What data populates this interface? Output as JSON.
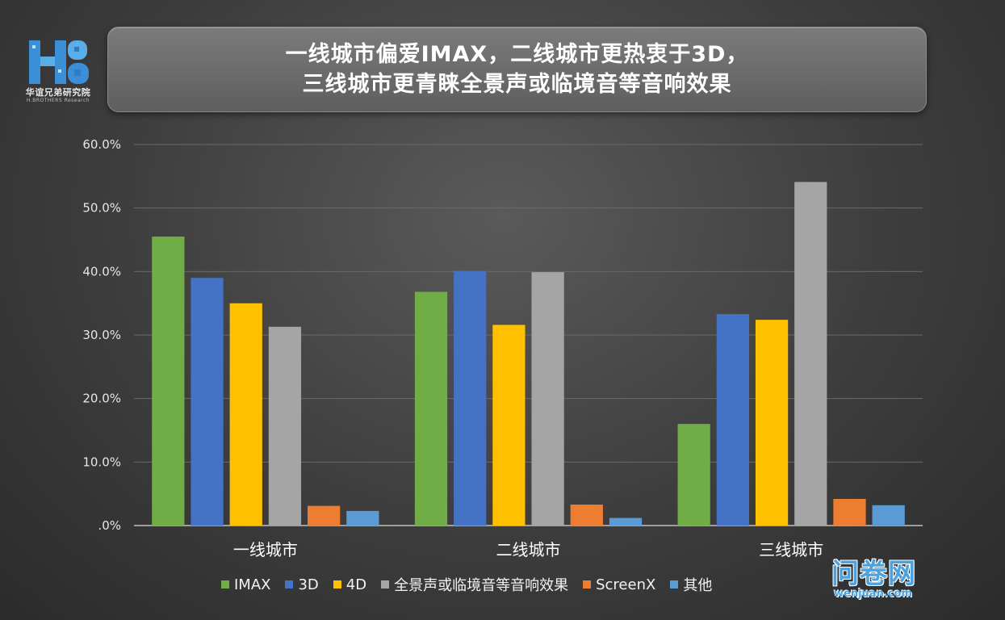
{
  "logo": {
    "icon": "hb-logo-icon",
    "text": "华谊兄弟研究院",
    "subtext": "H.BROTHERS Research"
  },
  "title": {
    "line1": "一线城市偏爱IMAX，二线城市更热衷于3D，",
    "line2": "三线城市更青睐全景声或临境音等音响效果"
  },
  "watermark": {
    "main": "问卷网",
    "sub": "wenjuan.com"
  },
  "chart_data": {
    "type": "bar",
    "categories": [
      "一线城市",
      "二线城市",
      "三线城市"
    ],
    "series": [
      {
        "name": "IMAX",
        "color": "#70ad47",
        "values": [
          45.5,
          36.8,
          16.0
        ]
      },
      {
        "name": "3D",
        "color": "#4472c4",
        "values": [
          39.0,
          40.1,
          33.3
        ]
      },
      {
        "name": "4D",
        "color": "#ffc000",
        "values": [
          35.0,
          31.6,
          32.4
        ]
      },
      {
        "name": "全景声或临境音等音响效果",
        "color": "#a5a5a5",
        "values": [
          31.3,
          39.9,
          54.1
        ]
      },
      {
        "name": "ScreenX",
        "color": "#ed7d31",
        "values": [
          3.1,
          3.3,
          4.2
        ]
      },
      {
        "name": "其他",
        "color": "#5b9bd5",
        "values": [
          2.3,
          1.2,
          3.2
        ]
      }
    ],
    "yticks": [
      ".0%",
      "10.0%",
      "20.0%",
      "30.0%",
      "40.0%",
      "50.0%",
      "60.0%"
    ],
    "ylim": [
      0,
      60
    ],
    "grid": true,
    "legend_position": "bottom"
  }
}
